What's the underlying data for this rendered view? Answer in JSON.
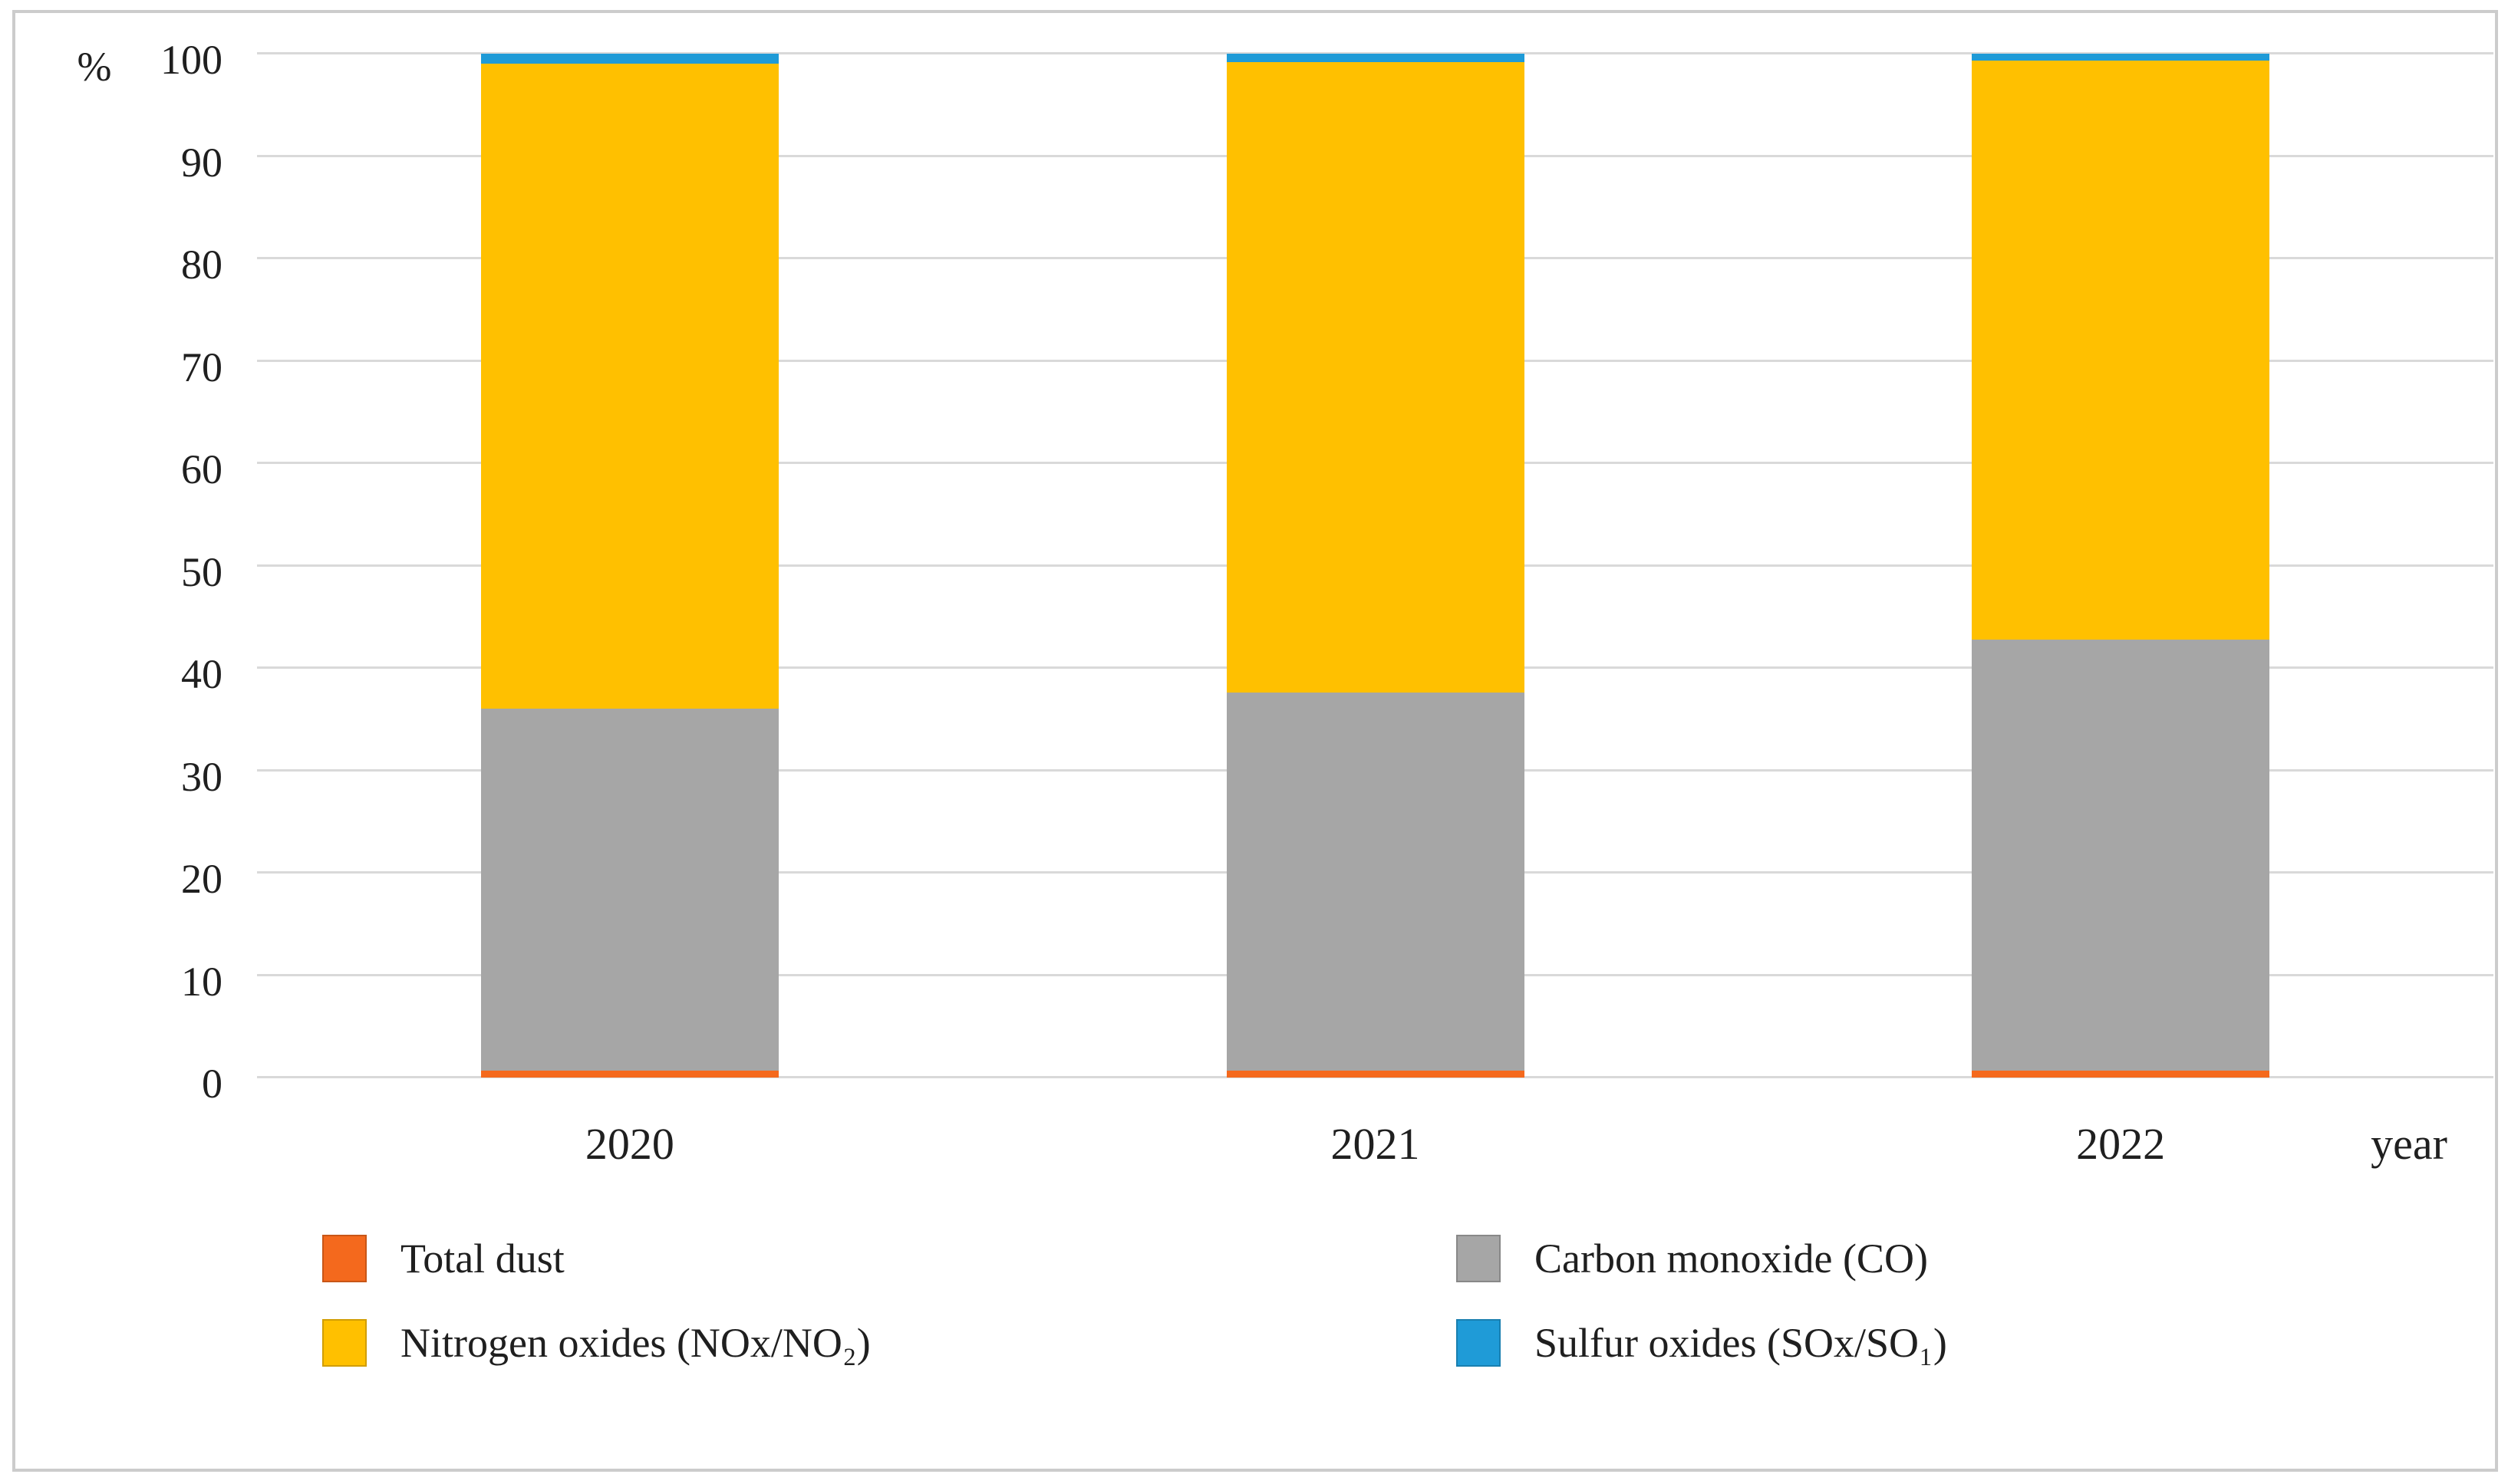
{
  "figure": {
    "y_axis_unit": "%",
    "x_axis_unit": "year"
  },
  "chart_data": {
    "type": "bar",
    "stacked": true,
    "title": "",
    "xlabel": "year",
    "ylabel": "%",
    "ylim": [
      0,
      100
    ],
    "ytick_step": 10,
    "grid": "horizontal",
    "gridline_color": "#D9D9D9",
    "categories": [
      "2020",
      "2021",
      "2022"
    ],
    "series": [
      {
        "name": "Total dust",
        "color": "#F4691D",
        "values": [
          0.7,
          0.7,
          0.7
        ]
      },
      {
        "name": "Carbon monoxide (CO)",
        "color": "#A6A6A6",
        "values": [
          35.3,
          36.9,
          42.1
        ]
      },
      {
        "name": "Nitrogen oxides (NOx/NO₂)",
        "color": "#FFC000",
        "values": [
          63.0,
          61.6,
          56.5
        ]
      },
      {
        "name": "Sulfur oxides (SOx/SO₁)",
        "color": "#1F9BD7",
        "values": [
          1.0,
          0.8,
          0.7
        ]
      }
    ],
    "legend_position": "bottom-two-columns",
    "legend_columns": [
      [
        0,
        2
      ],
      [
        1,
        3
      ]
    ]
  }
}
